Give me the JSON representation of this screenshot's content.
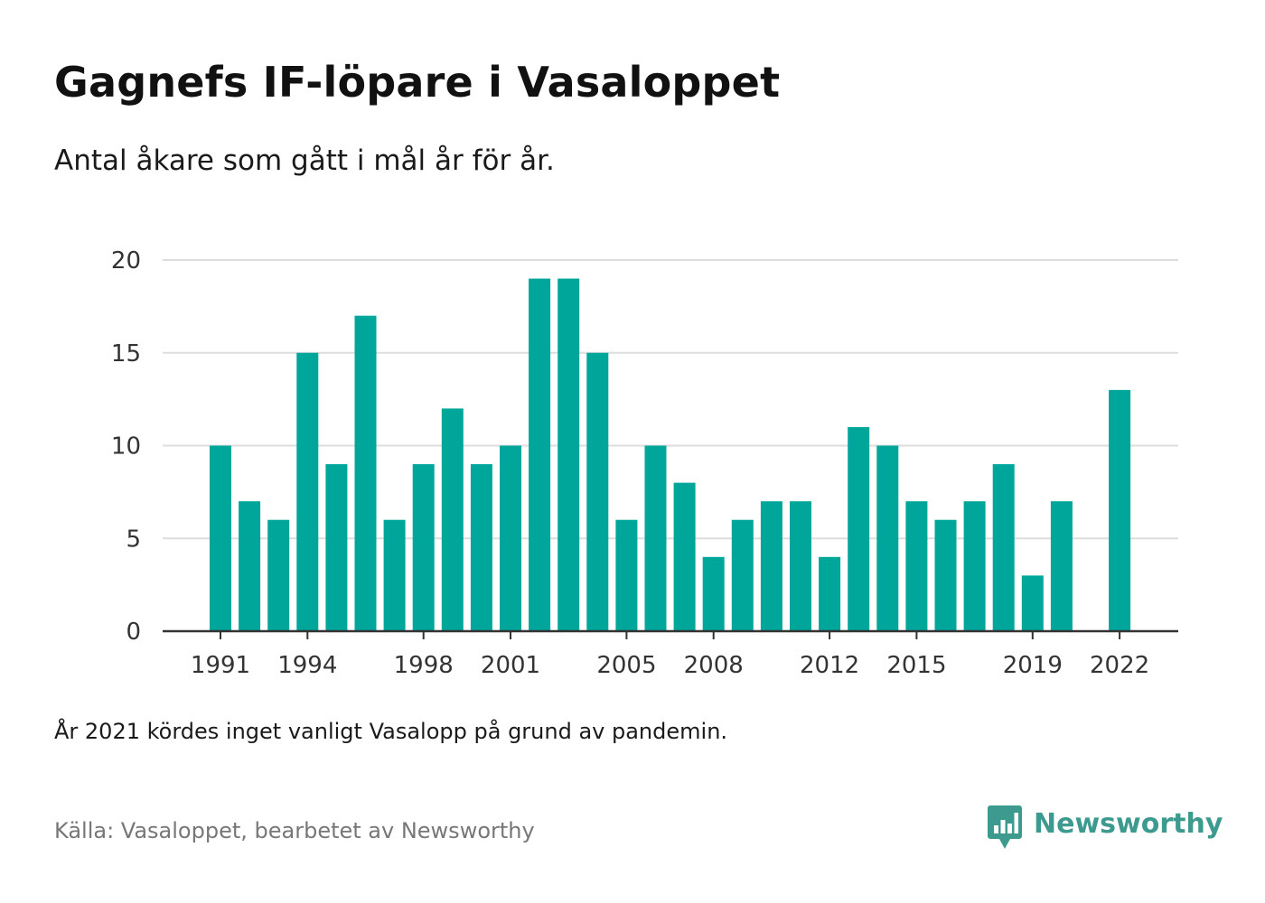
{
  "header": {
    "title": "Gagnefs IF-löpare i Vasaloppet",
    "subtitle": "Antal åkare som gått i mål år för år."
  },
  "footer": {
    "note": "År 2021 kördes inget vanligt Vasalopp på grund av pandemin.",
    "source": "Källa: Vasaloppet, bearbetet av Newsworthy",
    "brand_name": "Newsworthy",
    "brand_icon": "bar-chart-speech-bubble-icon"
  },
  "colors": {
    "bar": "#00a69a",
    "grid": "#dddddd",
    "axis": "#333333",
    "brand": "#3d9a8e"
  },
  "chart_data": {
    "type": "bar",
    "title": "Gagnefs IF-löpare i Vasaloppet",
    "subtitle": "Antal åkare som gått i mål år för år.",
    "xlabel": "",
    "ylabel": "",
    "ylim": [
      0,
      20
    ],
    "yticks": [
      0,
      5,
      10,
      15,
      20
    ],
    "xticks": [
      1991,
      1994,
      1998,
      2001,
      2005,
      2008,
      2012,
      2015,
      2019,
      2022
    ],
    "grid": true,
    "legend": "none",
    "categories": [
      1991,
      1992,
      1993,
      1994,
      1995,
      1996,
      1997,
      1998,
      1999,
      2000,
      2001,
      2002,
      2003,
      2004,
      2005,
      2006,
      2007,
      2008,
      2009,
      2010,
      2011,
      2012,
      2013,
      2014,
      2015,
      2016,
      2017,
      2018,
      2019,
      2020,
      2021,
      2022
    ],
    "values": [
      10,
      7,
      6,
      15,
      9,
      17,
      6,
      9,
      12,
      9,
      10,
      19,
      19,
      15,
      6,
      10,
      8,
      4,
      6,
      7,
      7,
      4,
      11,
      10,
      7,
      6,
      7,
      9,
      3,
      7,
      null,
      13
    ]
  }
}
